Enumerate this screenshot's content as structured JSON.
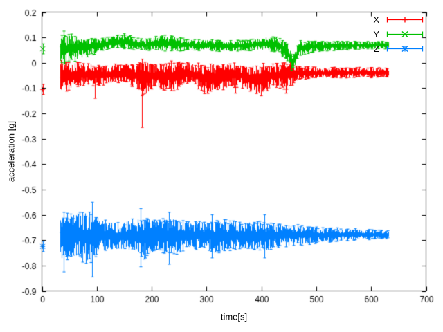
{
  "figure": {
    "background": "#ffffff"
  },
  "chart_data": {
    "type": "line-errorbar",
    "title": "",
    "xlabel": "time[s]",
    "ylabel": "acceleration [g]",
    "xlim": [
      0,
      700
    ],
    "ylim": [
      -0.9,
      0.2
    ],
    "grid": false,
    "legend": {
      "position": "top-right"
    },
    "xticks": {
      "values": [
        0,
        100,
        200,
        300,
        400,
        500,
        600,
        700
      ],
      "labels": [
        "0",
        "100",
        "200",
        "300",
        "400",
        "500",
        "600",
        "700"
      ]
    },
    "yticks": {
      "values": [
        0.2,
        0.1,
        0,
        -0.1,
        -0.2,
        -0.3,
        -0.4,
        -0.5,
        -0.6,
        -0.7,
        -0.8,
        -0.9
      ],
      "labels": [
        "0.2",
        "0.1",
        "0",
        "-0.1",
        "-0.2",
        "-0.3",
        "-0.4",
        "-0.5",
        "-0.6",
        "-0.7",
        "-0.8",
        "-0.9"
      ]
    },
    "series": [
      {
        "name": "X",
        "color": "#ff0000",
        "symbol": "plus",
        "seed": 11,
        "x_range": [
          33,
          632
        ],
        "start_marker": {
          "x": 1.5,
          "y": -0.105,
          "err": 0.02
        },
        "keyframes": [
          [
            33,
            -0.055,
            0.075
          ],
          [
            50,
            -0.05,
            0.05
          ],
          [
            75,
            -0.045,
            0.045
          ],
          [
            110,
            -0.05,
            0.035
          ],
          [
            150,
            -0.04,
            0.035
          ],
          [
            172,
            -0.05,
            0.045
          ],
          [
            185,
            -0.06,
            0.07
          ],
          [
            205,
            -0.05,
            0.045
          ],
          [
            235,
            -0.055,
            0.055
          ],
          [
            268,
            -0.04,
            0.035
          ],
          [
            300,
            -0.065,
            0.055
          ],
          [
            330,
            -0.05,
            0.05
          ],
          [
            362,
            -0.05,
            0.04
          ],
          [
            395,
            -0.07,
            0.06
          ],
          [
            420,
            -0.05,
            0.04
          ],
          [
            448,
            -0.05,
            0.05
          ],
          [
            468,
            -0.04,
            0.022
          ],
          [
            520,
            -0.04,
            0.02
          ],
          [
            575,
            -0.038,
            0.018
          ],
          [
            632,
            -0.04,
            0.018
          ]
        ],
        "spikes": [
          [
            96,
            -0.14,
            -0.02
          ],
          [
            182,
            -0.255,
            -0.035
          ],
          [
            352,
            -0.12,
            -0.02
          ],
          [
            445,
            -0.12,
            -0.02
          ]
        ]
      },
      {
        "name": "Y",
        "color": "#00c000",
        "symbol": "cross",
        "seed": 22,
        "x_range": [
          33,
          632
        ],
        "start_marker": {
          "x": 1.5,
          "y": 0.055,
          "err": 0.02
        },
        "keyframes": [
          [
            33,
            0.05,
            0.06
          ],
          [
            55,
            0.06,
            0.05
          ],
          [
            80,
            0.06,
            0.035
          ],
          [
            105,
            0.07,
            0.025
          ],
          [
            135,
            0.085,
            0.022
          ],
          [
            160,
            0.08,
            0.025
          ],
          [
            188,
            0.07,
            0.02
          ],
          [
            215,
            0.08,
            0.03
          ],
          [
            240,
            0.075,
            0.028
          ],
          [
            265,
            0.07,
            0.02
          ],
          [
            305,
            0.07,
            0.02
          ],
          [
            340,
            0.065,
            0.02
          ],
          [
            378,
            0.07,
            0.02
          ],
          [
            408,
            0.075,
            0.025
          ],
          [
            432,
            0.07,
            0.028
          ],
          [
            448,
            0.04,
            0.035
          ],
          [
            457,
            -0.005,
            0.025
          ],
          [
            468,
            0.055,
            0.03
          ],
          [
            500,
            0.065,
            0.018
          ],
          [
            560,
            0.068,
            0.015
          ],
          [
            632,
            0.07,
            0.014
          ]
        ],
        "spikes": [
          [
            40,
            -0.005,
            0.125
          ],
          [
            150,
            0.055,
            0.115
          ],
          [
            455,
            -0.03,
            0.025
          ]
        ]
      },
      {
        "name": "Z",
        "color": "#0080ff",
        "symbol": "star",
        "seed": 33,
        "x_range": [
          33,
          632
        ],
        "start_marker": {
          "x": 1.5,
          "y": -0.725,
          "err": 0.02
        },
        "keyframes": [
          [
            33,
            -0.69,
            0.085
          ],
          [
            60,
            -0.68,
            0.08
          ],
          [
            88,
            -0.69,
            0.1
          ],
          [
            110,
            -0.68,
            0.06
          ],
          [
            140,
            -0.685,
            0.05
          ],
          [
            168,
            -0.68,
            0.06
          ],
          [
            185,
            -0.69,
            0.075
          ],
          [
            210,
            -0.68,
            0.06
          ],
          [
            235,
            -0.685,
            0.07
          ],
          [
            265,
            -0.68,
            0.05
          ],
          [
            298,
            -0.68,
            0.05
          ],
          [
            318,
            -0.685,
            0.06
          ],
          [
            352,
            -0.68,
            0.05
          ],
          [
            382,
            -0.68,
            0.05
          ],
          [
            408,
            -0.685,
            0.055
          ],
          [
            432,
            -0.68,
            0.045
          ],
          [
            462,
            -0.68,
            0.038
          ],
          [
            500,
            -0.68,
            0.03
          ],
          [
            552,
            -0.678,
            0.022
          ],
          [
            600,
            -0.678,
            0.018
          ],
          [
            632,
            -0.678,
            0.014
          ]
        ],
        "spikes": [
          [
            40,
            -0.825,
            -0.59
          ],
          [
            92,
            -0.845,
            -0.55
          ],
          [
            180,
            -0.805,
            -0.575
          ],
          [
            232,
            -0.795,
            -0.59
          ],
          [
            310,
            -0.77,
            -0.6
          ],
          [
            405,
            -0.77,
            -0.6
          ]
        ]
      }
    ]
  }
}
